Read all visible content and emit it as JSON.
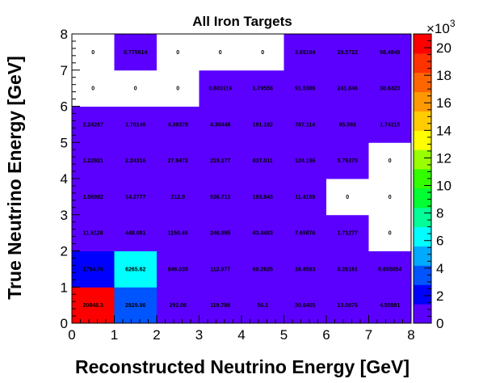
{
  "chart_data": {
    "type": "heatmap",
    "title": "All Iron Targets",
    "xlabel": "Reconstructed Neutrino Energy [GeV]",
    "ylabel": "True Neutrino Energy [GeV]",
    "x_edges": [
      0,
      1,
      2,
      3,
      4,
      5,
      6,
      7,
      8
    ],
    "y_edges": [
      0,
      1,
      2,
      3,
      4,
      5,
      6,
      7,
      8
    ],
    "xlim": [
      0,
      8
    ],
    "ylim": [
      0,
      8
    ],
    "x_ticks": [
      "0",
      "1",
      "2",
      "3",
      "4",
      "5",
      "6",
      "7",
      "8"
    ],
    "y_ticks": [
      "0",
      "1",
      "2",
      "3",
      "4",
      "5",
      "6",
      "7",
      "8"
    ],
    "zlim": [
      0,
      21000
    ],
    "colorbar_ticks": [
      "0",
      "2",
      "4",
      "6",
      "8",
      "10",
      "12",
      "14",
      "16",
      "18",
      "20"
    ],
    "colorbar_ticks_values": [
      0,
      2000,
      4000,
      6000,
      8000,
      10000,
      12000,
      14000,
      16000,
      18000,
      20000
    ],
    "colorbar_multiplier": "×10",
    "colorbar_multiplier_exp": "3",
    "palette": [
      "#5B00FF",
      "#0000FF",
      "#0055FF",
      "#00AAFF",
      "#00FFFF",
      "#00FF99",
      "#00FF33",
      "#33FF00",
      "#99FF00",
      "#FFFF00",
      "#FFCC00",
      "#FF9900",
      "#FF6600",
      "#FF3300",
      "#FF0000"
    ],
    "cells": [
      {
        "x": 0.5,
        "y": 0.5,
        "value": 20848.3,
        "label": "20848.3"
      },
      {
        "x": 1.5,
        "y": 0.5,
        "value": 2829.96,
        "label": "2829.96"
      },
      {
        "x": 2.5,
        "y": 0.5,
        "value": 292.08,
        "label": "292.08"
      },
      {
        "x": 3.5,
        "y": 0.5,
        "value": 119.788,
        "label": "119.788"
      },
      {
        "x": 4.5,
        "y": 0.5,
        "value": 56.1,
        "label": "56.1"
      },
      {
        "x": 5.5,
        "y": 0.5,
        "value": 30.6405,
        "label": "30.6405"
      },
      {
        "x": 6.5,
        "y": 0.5,
        "value": 13.0076,
        "label": "13.0076"
      },
      {
        "x": 7.5,
        "y": 0.5,
        "value": 4.55981,
        "label": "4.55981"
      },
      {
        "x": 0.5,
        "y": 1.5,
        "value": 1794.76,
        "label": "1794.76"
      },
      {
        "x": 1.5,
        "y": 1.5,
        "value": 6265.62,
        "label": "6265.62"
      },
      {
        "x": 2.5,
        "y": 1.5,
        "value": 846.035,
        "label": "846.035"
      },
      {
        "x": 3.5,
        "y": 1.5,
        "value": 112.977,
        "label": "112.977"
      },
      {
        "x": 4.5,
        "y": 1.5,
        "value": 60.2625,
        "label": "60.2625"
      },
      {
        "x": 5.5,
        "y": 1.5,
        "value": 16.8593,
        "label": "16.8593"
      },
      {
        "x": 6.5,
        "y": 1.5,
        "value": 8.26161,
        "label": "8.26161"
      },
      {
        "x": 7.5,
        "y": 1.5,
        "value": 0.655054,
        "label": "0.655054"
      },
      {
        "x": 0.5,
        "y": 2.5,
        "value": 11.5128,
        "label": "11.5128"
      },
      {
        "x": 1.5,
        "y": 2.5,
        "value": 448.081,
        "label": "448.081"
      },
      {
        "x": 2.5,
        "y": 2.5,
        "value": 1150.48,
        "label": "1150.48"
      },
      {
        "x": 3.5,
        "y": 2.5,
        "value": 246.895,
        "label": "246.895"
      },
      {
        "x": 4.5,
        "y": 2.5,
        "value": 43.4483,
        "label": "43.4483"
      },
      {
        "x": 5.5,
        "y": 2.5,
        "value": 7.65876,
        "label": "7.65876"
      },
      {
        "x": 6.5,
        "y": 2.5,
        "value": 1.71277,
        "label": "1.71277"
      },
      {
        "x": 7.5,
        "y": 2.5,
        "value": 0,
        "label": "0"
      },
      {
        "x": 0.5,
        "y": 3.5,
        "value": 1.56992,
        "label": "1.56992"
      },
      {
        "x": 1.5,
        "y": 3.5,
        "value": 14.2777,
        "label": "14.2777"
      },
      {
        "x": 2.5,
        "y": 3.5,
        "value": 212.9,
        "label": "212.9"
      },
      {
        "x": 3.5,
        "y": 3.5,
        "value": 536.713,
        "label": "536.713"
      },
      {
        "x": 4.5,
        "y": 3.5,
        "value": 193.843,
        "label": "193.843"
      },
      {
        "x": 5.5,
        "y": 3.5,
        "value": 11.4169,
        "label": "11.4169"
      },
      {
        "x": 6.5,
        "y": 3.5,
        "value": 0,
        "label": "0"
      },
      {
        "x": 7.5,
        "y": 3.5,
        "value": 0,
        "label": "0"
      },
      {
        "x": 0.5,
        "y": 4.5,
        "value": 1.22921,
        "label": "1.22921"
      },
      {
        "x": 1.5,
        "y": 4.5,
        "value": 2.24316,
        "label": "2.24316"
      },
      {
        "x": 2.5,
        "y": 4.5,
        "value": 27.9472,
        "label": "27.9472"
      },
      {
        "x": 3.5,
        "y": 4.5,
        "value": 219.177,
        "label": "219.177"
      },
      {
        "x": 4.5,
        "y": 4.5,
        "value": 837.011,
        "label": "837.011"
      },
      {
        "x": 5.5,
        "y": 4.5,
        "value": 124.196,
        "label": "124.196"
      },
      {
        "x": 6.5,
        "y": 4.5,
        "value": 5.76375,
        "label": "5.76375"
      },
      {
        "x": 7.5,
        "y": 4.5,
        "value": 0,
        "label": "0"
      },
      {
        "x": 0.5,
        "y": 5.5,
        "value": 2.24267,
        "label": "2.24267"
      },
      {
        "x": 1.5,
        "y": 5.5,
        "value": 1.70146,
        "label": "1.70146"
      },
      {
        "x": 2.5,
        "y": 5.5,
        "value": 4.39378,
        "label": "4.39378"
      },
      {
        "x": 3.5,
        "y": 5.5,
        "value": 4.30448,
        "label": "4.30448"
      },
      {
        "x": 4.5,
        "y": 5.5,
        "value": 191.182,
        "label": "191.182"
      },
      {
        "x": 5.5,
        "y": 5.5,
        "value": 787.114,
        "label": "787.114"
      },
      {
        "x": 6.5,
        "y": 5.5,
        "value": 95.593,
        "label": "95.593"
      },
      {
        "x": 7.5,
        "y": 5.5,
        "value": 1.74115,
        "label": "1.74115"
      },
      {
        "x": 0.5,
        "y": 6.5,
        "value": 0,
        "label": "0"
      },
      {
        "x": 1.5,
        "y": 6.5,
        "value": 0,
        "label": "0"
      },
      {
        "x": 2.5,
        "y": 6.5,
        "value": 0,
        "label": "0"
      },
      {
        "x": 3.5,
        "y": 6.5,
        "value": 0.803119,
        "label": "0.803119"
      },
      {
        "x": 4.5,
        "y": 6.5,
        "value": 1.79558,
        "label": "1.79558"
      },
      {
        "x": 5.5,
        "y": 6.5,
        "value": 91.5386,
        "label": "91.5386"
      },
      {
        "x": 6.5,
        "y": 6.5,
        "value": 241.846,
        "label": "241.846"
      },
      {
        "x": 7.5,
        "y": 6.5,
        "value": 30.6423,
        "label": "30.6423"
      },
      {
        "x": 0.5,
        "y": 7.5,
        "value": 0,
        "label": "0"
      },
      {
        "x": 1.5,
        "y": 7.5,
        "value": 0.775614,
        "label": "0.775614"
      },
      {
        "x": 2.5,
        "y": 7.5,
        "value": 0,
        "label": "0"
      },
      {
        "x": 3.5,
        "y": 7.5,
        "value": 0,
        "label": "0"
      },
      {
        "x": 4.5,
        "y": 7.5,
        "value": 0,
        "label": "0"
      },
      {
        "x": 5.5,
        "y": 7.5,
        "value": 3.65194,
        "label": "3.65194"
      },
      {
        "x": 6.5,
        "y": 7.5,
        "value": 29.5722,
        "label": "29.5722"
      },
      {
        "x": 7.5,
        "y": 7.5,
        "value": 58.4849,
        "label": "58.4849"
      }
    ]
  }
}
